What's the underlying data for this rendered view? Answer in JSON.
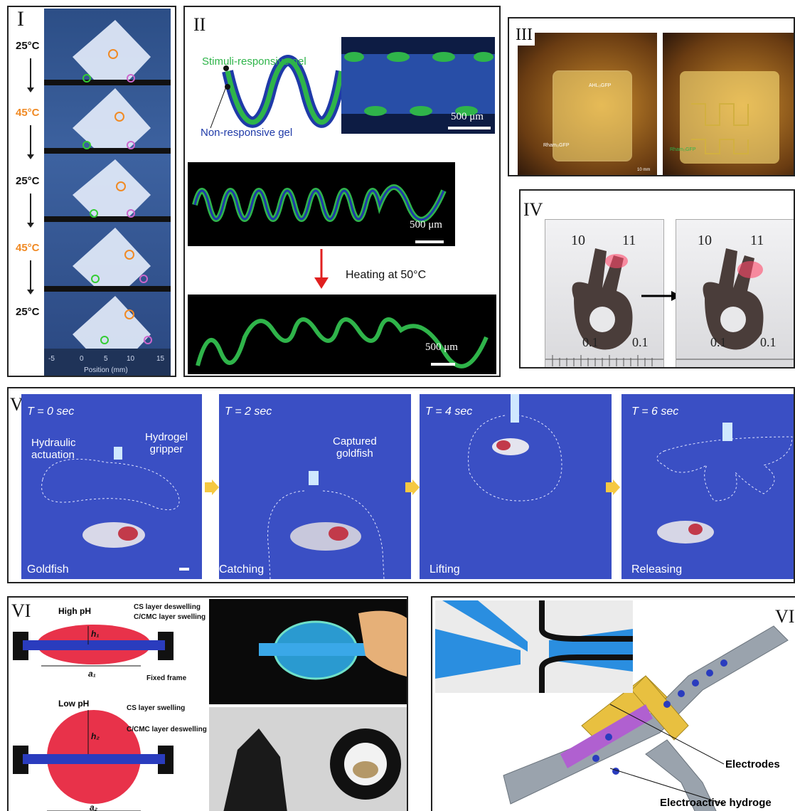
{
  "panels": {
    "p1": {
      "numeral": "I",
      "temps": [
        "25°C",
        "45°C",
        "25°C",
        "45°C",
        "25°C"
      ],
      "axis_ticks": [
        "-5",
        "0",
        "5",
        "10",
        "15"
      ],
      "axis_label": "Position (mm)"
    },
    "p2": {
      "numeral": "II",
      "stim_label": "Stimuli-responsive gel",
      "nonresp_label": "Non-responsive gel",
      "scale": "500 μm",
      "heating": "Heating at 50°C"
    },
    "p3": {
      "numeral": "III",
      "labels": [
        "AHL₍₎GFP",
        "Rham₍₎GFP",
        "10 mm"
      ]
    },
    "p4": {
      "numeral": "IV",
      "ruler": [
        "10",
        "11",
        "0.1",
        "0.1"
      ]
    },
    "p5": {
      "numeral": "V",
      "frames": [
        {
          "time": "T = 0 sec",
          "caption": "Goldfish",
          "a": "Hydraulic\nactuation",
          "b": "Hydrogel\ngripper"
        },
        {
          "time": "T = 2 sec",
          "caption": "Catching",
          "a": "Captured\ngoldfish"
        },
        {
          "time": "T = 4 sec",
          "caption": "Lifting"
        },
        {
          "time": "T = 6 sec",
          "caption": "Releasing"
        }
      ]
    },
    "p6": {
      "numeral": "VI",
      "high_ph": "High pH",
      "low_ph": "Low pH",
      "cs_deswell": "CS layer deswelling",
      "cmc_swell": "C/CMC layer swelling",
      "fixed": "Fixed frame",
      "cs_swell": "CS layer swelling",
      "cmc_deswell": "C/CMC layer deswelling",
      "h1": "h₁",
      "a1": "a₁",
      "h2": "h₂",
      "a2": "a₂"
    },
    "p7": {
      "numeral": "VI",
      "electrodes": "Electrodes",
      "hydrogel": "Electroactive hydroge"
    }
  },
  "colors": {
    "orange": "#f08a24",
    "blue_frame": "#3a4fc4",
    "gel_green": "#2fb44a",
    "gel_blue": "#1f3aa8",
    "red": "#e8324a"
  }
}
